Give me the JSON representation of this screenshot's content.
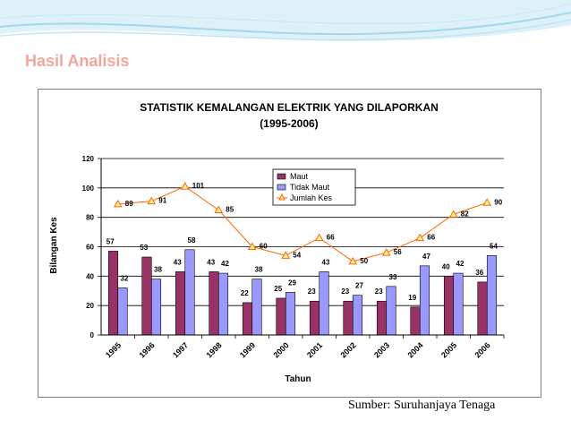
{
  "slide": {
    "title": "Hasil Analisis",
    "source": "Sumber: Suruhanjaya Tenaga"
  },
  "colors": {
    "title": "#f2a6a0",
    "maut": "#993366",
    "tidak_maut": "#9999ff",
    "jumlah": "#ff6600",
    "swoosh": "#9fd8ec"
  },
  "chart_data": {
    "type": "bar",
    "title": "STATISTIK KEMALANGAN ELEKTRIK YANG DILAPORKAN",
    "subtitle": "(1995-2006)",
    "xlabel": "Tahun",
    "ylabel": "Bilangan Kes",
    "ylim": [
      0,
      120
    ],
    "yticks": [
      0,
      20,
      40,
      60,
      80,
      100,
      120
    ],
    "grid": true,
    "legend": "top-center",
    "categories": [
      "1995",
      "1996",
      "1997",
      "1998",
      "1999",
      "2000",
      "2001",
      "2002",
      "2003",
      "2004",
      "2005",
      "2006"
    ],
    "series": [
      {
        "name": "Maut",
        "kind": "bar",
        "values": [
          57,
          53,
          43,
          43,
          22,
          25,
          23,
          23,
          23,
          19,
          40,
          36
        ]
      },
      {
        "name": "Tidak Maut",
        "kind": "bar",
        "values": [
          32,
          38,
          58,
          42,
          38,
          29,
          43,
          27,
          33,
          47,
          42,
          54
        ]
      },
      {
        "name": "Jumlah Kes",
        "kind": "line",
        "values": [
          89,
          91,
          101,
          85,
          60,
          54,
          66,
          50,
          56,
          66,
          82,
          90
        ]
      }
    ]
  }
}
